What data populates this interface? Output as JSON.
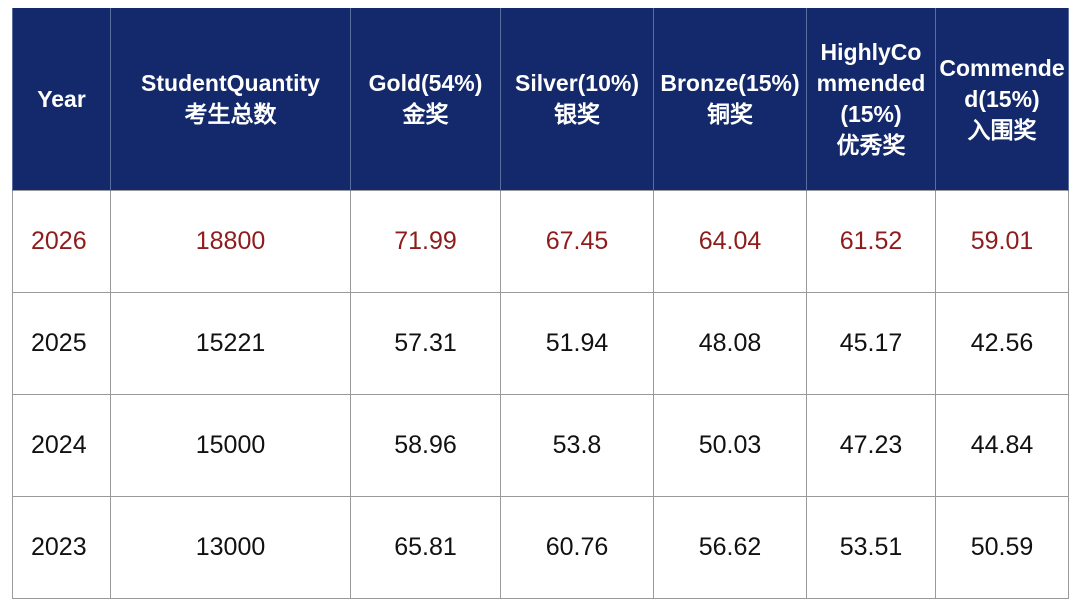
{
  "table": {
    "header": [
      [
        "Year"
      ],
      [
        "StudentQuantity",
        "考生总数"
      ],
      [
        "Gold(54%)",
        "金奖"
      ],
      [
        "Silver(10%)",
        "银奖"
      ],
      [
        "Bronze(15%)",
        "铜奖"
      ],
      [
        "HighlyCo",
        "mmended",
        "(15%)",
        "优秀奖"
      ],
      [
        "Commende",
        "d(15%)",
        "入围奖"
      ]
    ],
    "rows": [
      [
        2026,
        18800,
        71.99,
        67.45,
        64.04,
        61.52,
        59.01
      ],
      [
        2025,
        15221,
        57.31,
        51.94,
        48.08,
        45.17,
        42.56
      ],
      [
        2024,
        15000,
        58.96,
        53.8,
        50.03,
        47.23,
        44.84
      ],
      [
        2023,
        13000,
        65.81,
        60.76,
        56.62,
        53.51,
        50.59
      ]
    ]
  }
}
